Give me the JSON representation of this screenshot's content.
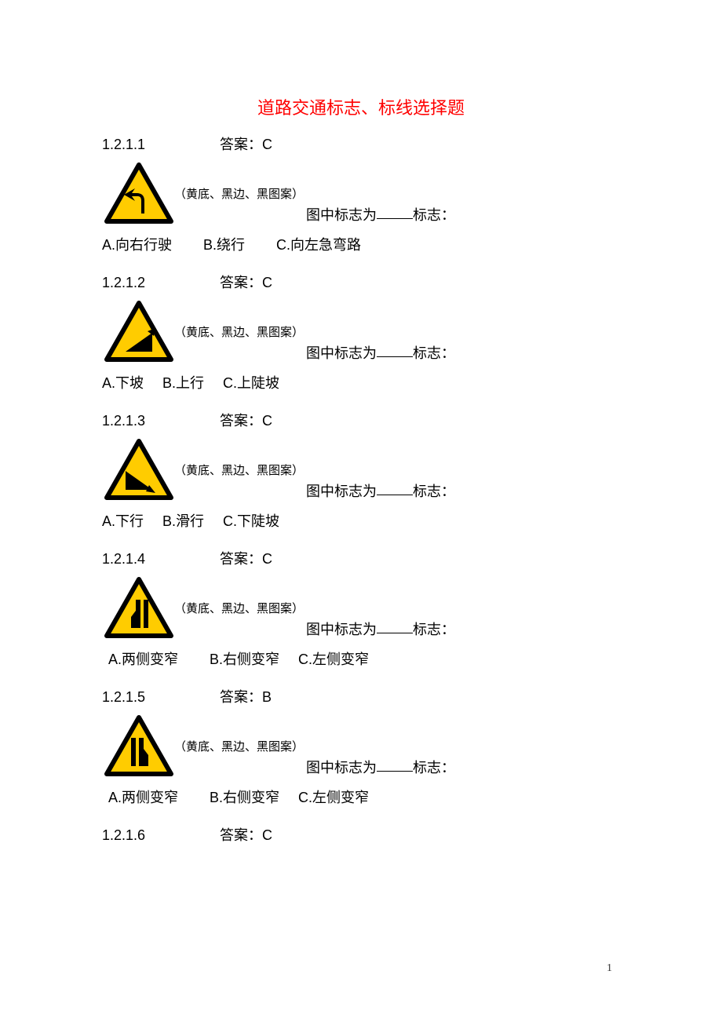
{
  "title": "道路交通标志、标线选择题",
  "answer_label": "答案：",
  "sign_caption": "（黄底、黑边、黑图案）",
  "stem_prefix": "图中标志为",
  "stem_suffix": "标志：",
  "page_number": "1",
  "sign_colors": {
    "fill": "#ffcc00",
    "border": "#000000",
    "symbol": "#000000"
  },
  "questions": [
    {
      "num": "1.2.1.1",
      "answer": "C",
      "icon": "left-curve",
      "opts": [
        {
          "k": "A",
          "t": "向右行驶",
          "gap": "gap-md"
        },
        {
          "k": "B",
          "t": "绕行",
          "gap": "gap-md"
        },
        {
          "k": "C",
          "t": "向左急弯路",
          "gap": ""
        }
      ],
      "indent": false
    },
    {
      "num": "1.2.1.2",
      "answer": "C",
      "icon": "up-slope",
      "opts": [
        {
          "k": "A",
          "t": "下坡",
          "gap": "gap-sm"
        },
        {
          "k": "B",
          "t": "上行",
          "gap": "gap-sm"
        },
        {
          "k": "C",
          "t": "上陡坡",
          "gap": ""
        }
      ],
      "indent": false
    },
    {
      "num": "1.2.1.3",
      "answer": "C",
      "icon": "down-slope",
      "opts": [
        {
          "k": "A",
          "t": "下行",
          "gap": "gap-sm"
        },
        {
          "k": "B",
          "t": "滑行",
          "gap": "gap-sm"
        },
        {
          "k": "C",
          "t": "下陡坡",
          "gap": ""
        }
      ],
      "indent": false
    },
    {
      "num": "1.2.1.4",
      "answer": "C",
      "icon": "narrow-left",
      "opts": [
        {
          "k": "A",
          "t": "两侧变窄",
          "gap": "gap-md"
        },
        {
          "k": "B",
          "t": "右侧变窄",
          "gap": "gap-sm"
        },
        {
          "k": "C",
          "t": "左侧变窄",
          "gap": ""
        }
      ],
      "indent": true
    },
    {
      "num": "1.2.1.5",
      "answer": "B",
      "icon": "narrow-right",
      "opts": [
        {
          "k": "A",
          "t": "两侧变窄",
          "gap": "gap-md"
        },
        {
          "k": "B",
          "t": "右侧变窄",
          "gap": "gap-sm"
        },
        {
          "k": "C",
          "t": "左侧变窄",
          "gap": ""
        }
      ],
      "indent": true
    },
    {
      "num": "1.2.1.6",
      "answer": "C",
      "icon": null,
      "opts": [],
      "indent": false
    }
  ]
}
